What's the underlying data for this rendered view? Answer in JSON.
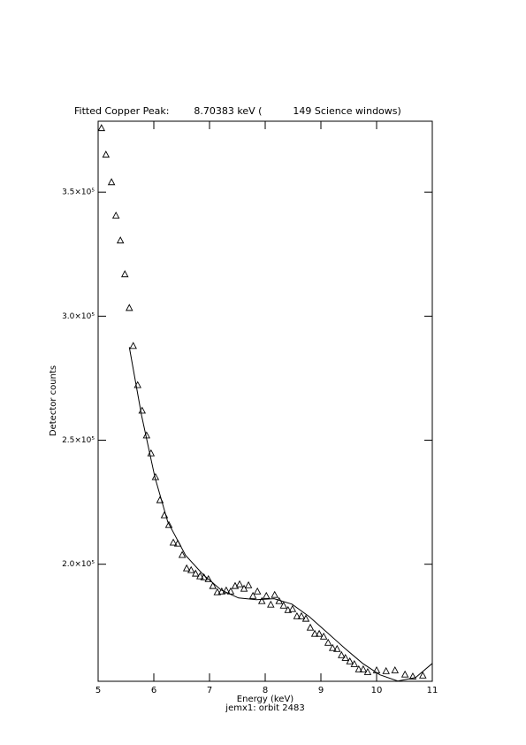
{
  "chart_data": {
    "type": "scatter",
    "title": "Fitted Copper Peak:        8.70383 keV (          149 Science windows)",
    "xlabel": "Energy (keV)",
    "subtitle": "jemx1: orbit 2483",
    "ylabel": "Detector counts",
    "xlim": [
      5,
      11
    ],
    "xticks": [
      5,
      6,
      7,
      8,
      9,
      10,
      11
    ],
    "ylim": [
      152800,
      378600
    ],
    "yticks": [
      {
        "value": 200000,
        "label": "2.0×10⁵"
      },
      {
        "value": 250000,
        "label": "2.5×10⁵"
      },
      {
        "value": 300000,
        "label": "3.0×10⁵"
      },
      {
        "value": 350000,
        "label": "3.5×10⁵"
      }
    ],
    "series": [
      {
        "mark": "triangle",
        "color": "#000000",
        "x": [
          5.06,
          5.14,
          5.24,
          5.32,
          5.4,
          5.48,
          5.56,
          5.63,
          5.71,
          5.79,
          5.87,
          5.95,
          6.03,
          6.11,
          6.19,
          6.27,
          6.35,
          6.43,
          6.51,
          6.59,
          6.67,
          6.75,
          6.83,
          6.9,
          6.98,
          7.06,
          7.14,
          7.22,
          7.3,
          7.38,
          7.46,
          7.54,
          7.62,
          7.7,
          7.78,
          7.86,
          7.94,
          8.02,
          8.1,
          8.17,
          8.25,
          8.33,
          8.41,
          8.49,
          8.57,
          8.65,
          8.73,
          8.81,
          8.89,
          8.97,
          9.05,
          9.13,
          9.21,
          9.29,
          9.37,
          9.44,
          9.52,
          9.6,
          9.68,
          9.76,
          9.84,
          10.0,
          10.17,
          10.33,
          10.51,
          10.65,
          10.83
        ],
        "values": [
          375700,
          365000,
          353900,
          340400,
          330400,
          316800,
          303200,
          287900,
          272100,
          261800,
          251800,
          244600,
          235000,
          225700,
          219600,
          215700,
          208600,
          208200,
          203600,
          198200,
          197500,
          196100,
          195000,
          194600,
          193900,
          191100,
          188600,
          188900,
          189300,
          188900,
          191100,
          191800,
          190000,
          191400,
          187100,
          188900,
          185000,
          187100,
          183600,
          187500,
          185000,
          183200,
          181400,
          181800,
          178900,
          178900,
          177900,
          174300,
          171800,
          171800,
          170700,
          168200,
          166100,
          165700,
          163200,
          162100,
          160700,
          159600,
          157500,
          157500,
          156400,
          157100,
          156800,
          157100,
          155400,
          154600,
          155000
        ]
      },
      {
        "mark": "line",
        "color": "#000000",
        "x": [
          5.56,
          5.78,
          6.02,
          6.25,
          6.57,
          6.89,
          7.21,
          7.52,
          7.84,
          8.16,
          8.48,
          8.79,
          9.11,
          9.43,
          9.75,
          10.06,
          10.38,
          10.7,
          11.0
        ],
        "values": [
          287500,
          260000,
          235000,
          217100,
          203600,
          195700,
          189600,
          186400,
          185700,
          186100,
          183900,
          178900,
          172500,
          166100,
          160000,
          155400,
          152900,
          154300,
          160000
        ]
      }
    ]
  }
}
